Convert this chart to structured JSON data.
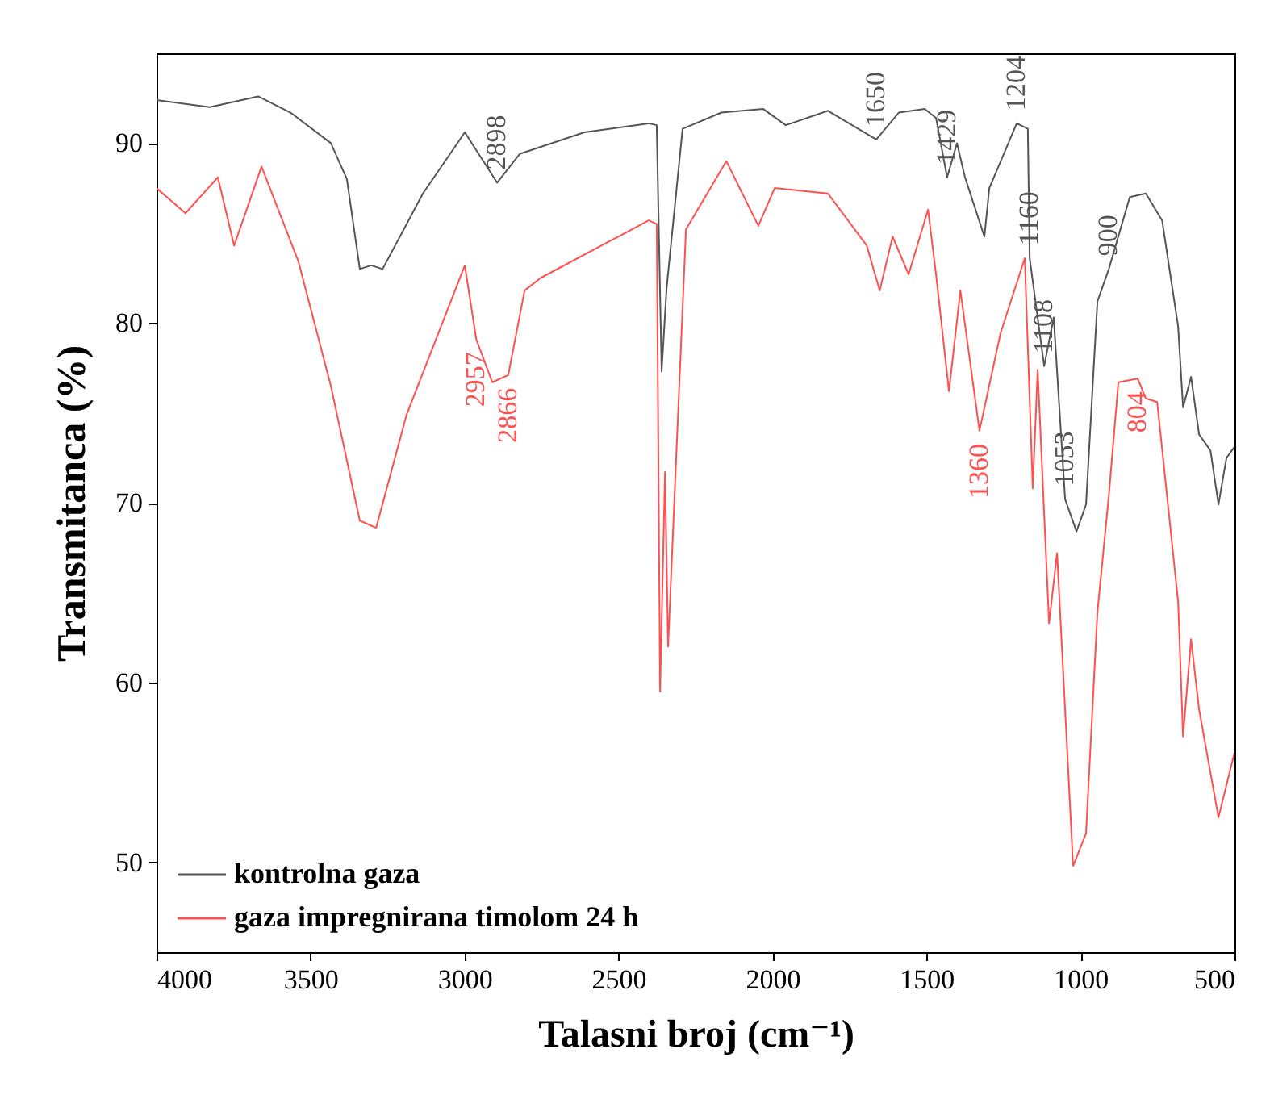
{
  "chart_data": {
    "type": "line",
    "xlabel": "Talasni broj (cm⁻¹)",
    "ylabel": "Transmitanca (%)",
    "xlim": [
      4000,
      500
    ],
    "xticks": [
      4000,
      3500,
      3000,
      2500,
      2000,
      1500,
      1000,
      500
    ],
    "ylim": [
      45,
      95
    ],
    "yticks": [
      50,
      60,
      70,
      80,
      90
    ],
    "grid": false,
    "legend": "bottom left",
    "series": [
      {
        "name": "kontrolna gaza",
        "color": "#555555",
        "x": [
          4000,
          3827,
          3670,
          3565,
          3434,
          3382,
          3340,
          3303,
          3266,
          3135,
          2999,
          2894,
          2821,
          2611,
          2402,
          2376,
          2360,
          2344,
          2292,
          2166,
          2030,
          1957,
          1820,
          1663,
          1590,
          1506,
          1469,
          1433,
          1401,
          1375,
          1312,
          1296,
          1207,
          1171,
          1165,
          1118,
          1087,
          1050,
          1013,
          982,
          945,
          908,
          840,
          788,
          735,
          683,
          667,
          641,
          615,
          578,
          552,
          526,
          500
        ],
        "values": [
          92.4,
          92.0,
          92.6,
          91.7,
          90,
          88,
          83,
          83.2,
          83,
          87.2,
          90.6,
          87.8,
          89.4,
          90.6,
          91.1,
          91,
          77.3,
          81.9,
          90.8,
          91.7,
          91.9,
          91.0,
          91.8,
          90.2,
          91.7,
          91.9,
          91.4,
          88.1,
          90,
          88.1,
          84.8,
          87.5,
          91.1,
          90.8,
          83.6,
          77.6,
          80.3,
          70.2,
          68.4,
          69.9,
          81.2,
          83.0,
          87,
          87.2,
          85.7,
          79.8,
          75.3,
          77,
          73.8,
          72.9,
          69.9,
          72.5,
          73.1
        ]
      },
      {
        "name": "gaza impregnirana timolom 24 h",
        "color": "#ff5050",
        "x": [
          4000,
          3906,
          3801,
          3748,
          3659,
          3539,
          3434,
          3340,
          3287,
          3188,
          2999,
          2962,
          2910,
          2858,
          2805,
          2753,
          2402,
          2376,
          2365,
          2349,
          2339,
          2281,
          2150,
          2046,
          1993,
          1820,
          1694,
          1652,
          1610,
          1558,
          1495,
          1469,
          1427,
          1390,
          1328,
          1260,
          1181,
          1155,
          1139,
          1102,
          1076,
          1024,
          982,
          945,
          908,
          877,
          814,
          788,
          751,
          683,
          667,
          641,
          615,
          552,
          500
        ],
        "values": [
          87.5,
          86.1,
          88.1,
          84.3,
          88.7,
          83.4,
          76.5,
          69.0,
          68.6,
          74.9,
          83.2,
          79.1,
          76.7,
          77.1,
          81.8,
          82.5,
          85.7,
          85.5,
          59.5,
          71.7,
          62,
          85.2,
          89,
          85.4,
          87.5,
          87.2,
          84.3,
          81.8,
          84.8,
          82.7,
          86.3,
          82.7,
          76.2,
          81.8,
          74,
          79.4,
          83.6,
          70.8,
          77.4,
          63.3,
          67.2,
          49.8,
          51.6,
          63.9,
          70.4,
          76.7,
          76.9,
          75.8,
          75.6,
          64.5,
          57,
          62.4,
          58.5,
          52.5,
          56.1
        ]
      }
    ],
    "annotations": [
      {
        "text": "2898",
        "x": 2894,
        "y": 87.8
      },
      {
        "text": "1650",
        "x": 1663,
        "y": 90.2
      },
      {
        "text": "1429",
        "x": 1433,
        "y": 88.1
      },
      {
        "text": "1204",
        "x": 1207,
        "y": 91.1
      },
      {
        "text": "1160",
        "x": 1165,
        "y": 83.6
      },
      {
        "text": "1108",
        "x": 1118,
        "y": 77.6
      },
      {
        "text": "1053",
        "x": 1050,
        "y": 70.2
      },
      {
        "text": "900",
        "x": 908,
        "y": 83.0
      },
      {
        "text": "2957",
        "x": 2962,
        "y": 79.1
      },
      {
        "text": "2866",
        "x": 2858,
        "y": 77.1
      },
      {
        "text": "1360",
        "x": 1328,
        "y": 74
      },
      {
        "text": "804",
        "x": 814,
        "y": 76.9
      }
    ]
  }
}
